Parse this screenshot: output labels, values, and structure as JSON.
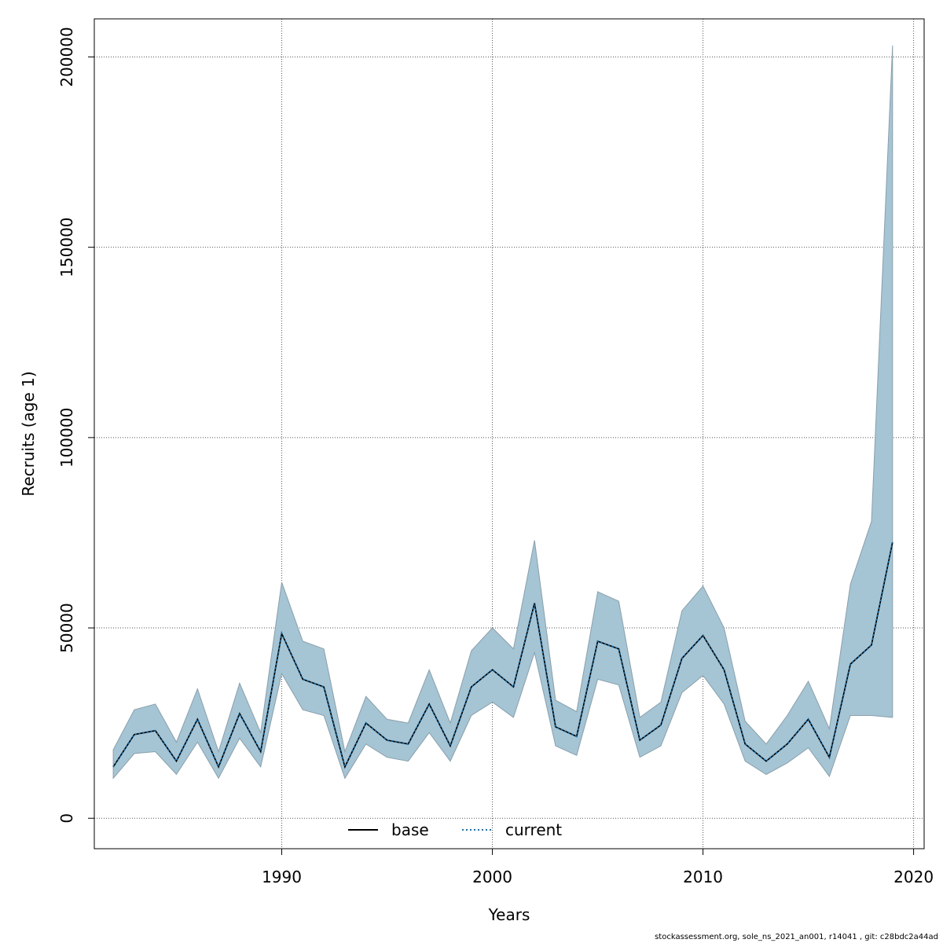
{
  "chart_data": {
    "type": "line",
    "xlabel": "Years",
    "ylabel": "Recruits (age 1)",
    "xlim": [
      1981.1,
      2020.5
    ],
    "ylim": [
      -8000,
      210000
    ],
    "xticks": [
      1990,
      2000,
      2010,
      2020
    ],
    "yticks": [
      0,
      50000,
      100000,
      150000,
      200000
    ],
    "grid": true,
    "legend_position": "bottom-center",
    "band_color": "#a5c4d4",
    "x": [
      1982,
      1983,
      1984,
      1985,
      1986,
      1987,
      1988,
      1989,
      1990,
      1991,
      1992,
      1993,
      1994,
      1995,
      1996,
      1997,
      1998,
      1999,
      2000,
      2001,
      2002,
      2003,
      2004,
      2005,
      2006,
      2007,
      2008,
      2009,
      2010,
      2011,
      2012,
      2013,
      2014,
      2015,
      2016,
      2017,
      2018,
      2019
    ],
    "series": [
      {
        "name": "base",
        "line_style": "solid",
        "color": "#000000",
        "values": [
          13500,
          22000,
          23000,
          15000,
          26000,
          13500,
          27500,
          17500,
          48500,
          36500,
          34500,
          13500,
          25000,
          20500,
          19500,
          30000,
          19000,
          34500,
          39000,
          34500,
          56500,
          24000,
          21500,
          46500,
          44500,
          20500,
          24500,
          42000,
          48000,
          39000,
          19500,
          15000,
          19500,
          26000,
          16000,
          40500,
          45500,
          72500
        ],
        "lower": [
          10500,
          17000,
          17500,
          11500,
          20000,
          10500,
          21000,
          13500,
          38000,
          28500,
          27000,
          10500,
          19500,
          16000,
          15000,
          22500,
          15000,
          27000,
          30500,
          26500,
          43500,
          19000,
          16500,
          36500,
          35000,
          16000,
          19000,
          33000,
          37500,
          30000,
          15000,
          11500,
          14500,
          18500,
          11000,
          27000,
          27000,
          26500
        ],
        "upper": [
          18000,
          28500,
          30000,
          20000,
          34000,
          17500,
          35500,
          22500,
          62000,
          46500,
          44500,
          17500,
          32000,
          26000,
          25000,
          39000,
          25000,
          44000,
          50000,
          44500,
          73000,
          31000,
          28000,
          59500,
          57000,
          26500,
          30500,
          54500,
          61000,
          50000,
          25500,
          19500,
          27000,
          36000,
          23500,
          61500,
          78000,
          203000
        ]
      },
      {
        "name": "current",
        "line_style": "dotted",
        "color": "#1f6fa8",
        "values": [
          13500,
          22000,
          23000,
          15000,
          26000,
          13500,
          27500,
          17500,
          48500,
          36500,
          34500,
          13500,
          25000,
          20500,
          19500,
          30000,
          19000,
          34500,
          39000,
          34500,
          56500,
          24000,
          21500,
          46500,
          44500,
          20500,
          24500,
          42000,
          48000,
          39000,
          19500,
          15000,
          19500,
          26000,
          16000,
          40500,
          45500,
          72500
        ]
      }
    ]
  },
  "legend": {
    "base_label": "base",
    "current_label": "current"
  },
  "footer": "stockassessment.org, sole_ns_2021_an001, r14041 , git: c28bdc2a44ad"
}
